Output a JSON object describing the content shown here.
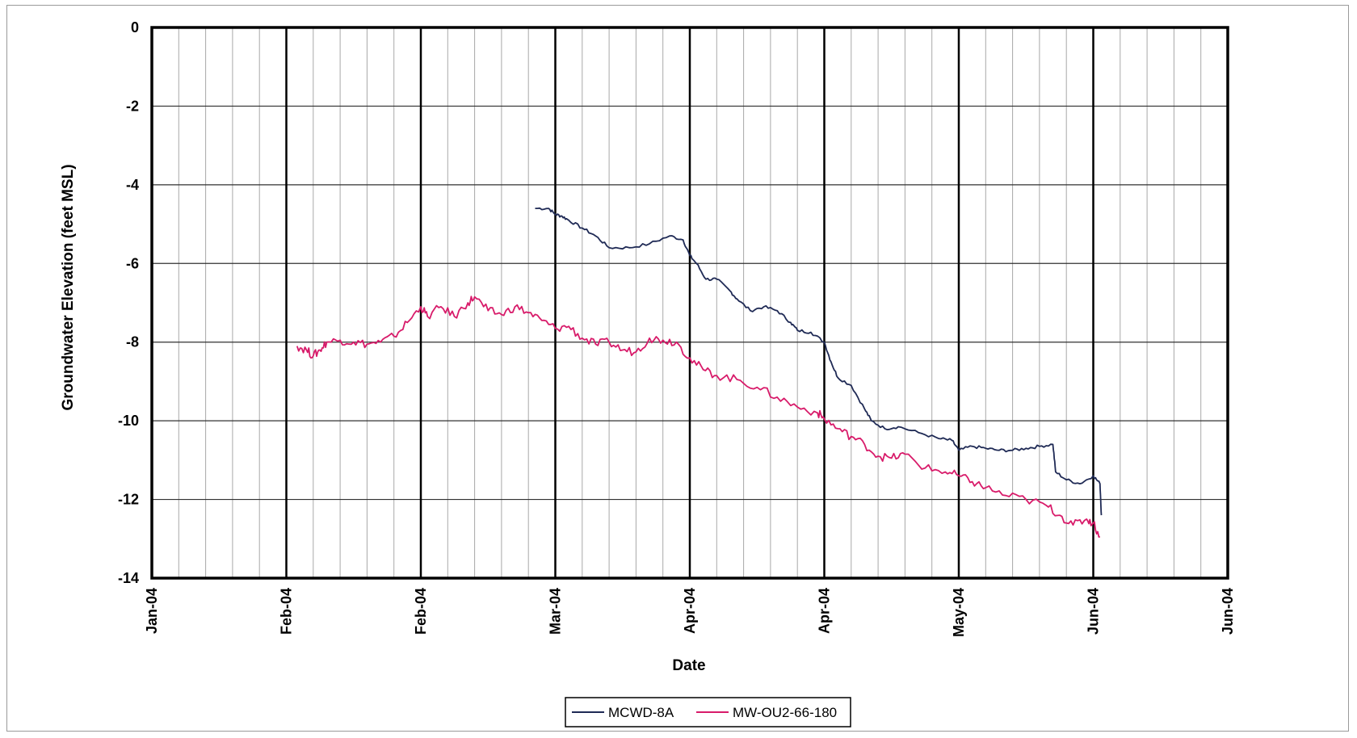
{
  "chart_data": {
    "type": "line",
    "title": "",
    "xlabel": "Date",
    "ylabel": "Groundwater Elevation (feet MSL)",
    "ylim": [
      -14,
      0
    ],
    "yticks": [
      "0",
      "-2",
      "-4",
      "-6",
      "-8",
      "-10",
      "-12",
      "-14"
    ],
    "xticks": [
      "Jan-04",
      "Feb-04",
      "Feb-04",
      "Mar-04",
      "Apr-04",
      "Apr-04",
      "May-04",
      "Jun-04",
      "Jun-04"
    ],
    "xlim": [
      0,
      8
    ],
    "x_unit_note": "",
    "grid": true,
    "legend": "bottom-center",
    "series": [
      {
        "name": "MCWD-8A",
        "color": "#1f2a55",
        "x": [
          2.85,
          2.95,
          3.0,
          3.05,
          3.1,
          3.2,
          3.3,
          3.4,
          3.55,
          3.7,
          3.85,
          3.95,
          4.0,
          4.05,
          4.12,
          4.2,
          4.3,
          4.35,
          4.45,
          4.55,
          4.65,
          4.75,
          4.8,
          4.9,
          5.0,
          5.05,
          5.1,
          5.2,
          5.3,
          5.35,
          5.45,
          5.55,
          5.7,
          5.85,
          5.95,
          6.0,
          6.1,
          6.2,
          6.3,
          6.4,
          6.5,
          6.6,
          6.7,
          6.72,
          6.8,
          6.9,
          7.0,
          7.05,
          7.06
        ],
        "y": [
          -4.6,
          -4.6,
          -4.75,
          -4.8,
          -4.9,
          -5.1,
          -5.3,
          -5.6,
          -5.6,
          -5.5,
          -5.3,
          -5.4,
          -5.8,
          -6.0,
          -6.4,
          -6.4,
          -6.7,
          -6.9,
          -7.2,
          -7.1,
          -7.2,
          -7.5,
          -7.7,
          -7.75,
          -8.0,
          -8.5,
          -8.9,
          -9.1,
          -9.7,
          -10.0,
          -10.2,
          -10.15,
          -10.3,
          -10.45,
          -10.5,
          -10.75,
          -10.65,
          -10.7,
          -10.75,
          -10.75,
          -10.7,
          -10.65,
          -10.6,
          -11.3,
          -11.5,
          -11.6,
          -11.4,
          -11.6,
          -12.4
        ]
      },
      {
        "name": "MW-OU2-66-180",
        "color": "#d81b6a",
        "x": [
          1.08,
          1.15,
          1.2,
          1.25,
          1.3,
          1.4,
          1.5,
          1.6,
          1.7,
          1.8,
          1.9,
          2.0,
          2.05,
          2.15,
          2.25,
          2.35,
          2.4,
          2.5,
          2.6,
          2.7,
          2.8,
          2.9,
          3.0,
          3.1,
          3.2,
          3.3,
          3.4,
          3.5,
          3.6,
          3.7,
          3.8,
          3.9,
          4.0,
          4.1,
          4.2,
          4.35,
          4.5,
          4.65,
          4.8,
          4.95,
          5.0,
          5.1,
          5.2,
          5.3,
          5.4,
          5.5,
          5.6,
          5.75,
          5.9,
          6.0,
          6.1,
          6.2,
          6.35,
          6.5,
          6.65,
          6.75,
          6.85,
          6.95,
          7.0,
          7.05
        ],
        "y": [
          -8.1,
          -8.2,
          -8.35,
          -8.2,
          -8.0,
          -7.95,
          -8.0,
          -8.05,
          -8.0,
          -7.85,
          -7.5,
          -7.1,
          -7.35,
          -7.1,
          -7.35,
          -7.0,
          -6.85,
          -7.2,
          -7.3,
          -7.1,
          -7.25,
          -7.45,
          -7.65,
          -7.6,
          -7.9,
          -8.05,
          -8.0,
          -8.2,
          -8.25,
          -7.9,
          -7.95,
          -8.0,
          -8.4,
          -8.7,
          -8.85,
          -8.95,
          -9.15,
          -9.4,
          -9.65,
          -9.8,
          -9.95,
          -10.2,
          -10.4,
          -10.6,
          -10.9,
          -10.95,
          -10.85,
          -11.2,
          -11.3,
          -11.4,
          -11.55,
          -11.7,
          -11.9,
          -12.0,
          -12.15,
          -12.4,
          -12.65,
          -12.5,
          -12.6,
          -12.95
        ]
      }
    ]
  }
}
